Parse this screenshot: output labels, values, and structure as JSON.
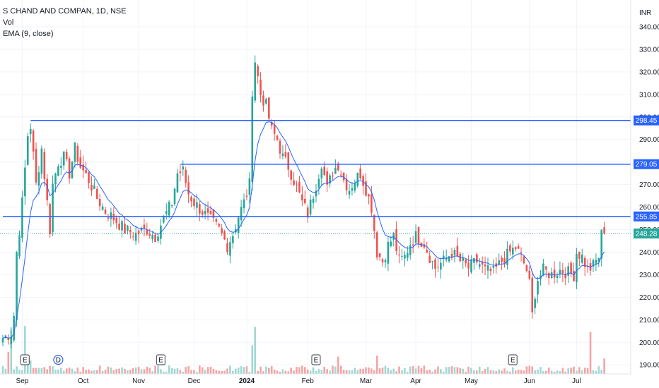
{
  "legend": {
    "symbol_line": "S CHAND AND COMPAN, 1D, NSE",
    "volume_label": "Vol",
    "ema_label": "EMA (9, close)"
  },
  "chart_data": {
    "type": "candlestick",
    "currency": "INR",
    "ylim": [
      186,
      345
    ],
    "y_ticks": [
      190,
      200,
      210,
      220,
      230,
      240,
      250,
      260,
      270,
      280,
      290,
      300,
      310,
      320,
      330,
      340
    ],
    "x_ticks": [
      "Sep",
      "Oct",
      "Nov",
      "Dec",
      "2024",
      "Feb",
      "Mar",
      "Apr",
      "May",
      "Jun",
      "Jul"
    ],
    "x_tick_index": [
      7,
      29,
      49,
      69,
      88,
      110,
      131,
      149,
      169,
      190,
      207
    ],
    "grid": true,
    "colors": {
      "up": "#26a69a",
      "down": "#ef5350",
      "ema": "#2962ff",
      "hline": "#2962ff",
      "vol_up": "#9fd8d2",
      "vol_down": "#f5a4a4"
    },
    "horizontal_lines": [
      {
        "value": 298.45,
        "label": "298.45",
        "start_index": 10
      },
      {
        "value": 279.05,
        "label": "279.05",
        "start_index": 64
      },
      {
        "value": 255.85,
        "label": "255.85",
        "start_index": 0
      }
    ],
    "last_price": {
      "value": 248.28,
      "label": "248.28"
    },
    "event_markers": [
      {
        "index": 8,
        "label": "E"
      },
      {
        "index": 20,
        "label": "D"
      },
      {
        "index": 57,
        "label": "E"
      },
      {
        "index": 113,
        "label": "E"
      },
      {
        "index": 184,
        "label": "E"
      }
    ],
    "anchors": [
      [
        0,
        202
      ],
      [
        3,
        204
      ],
      [
        4,
        212
      ],
      [
        5,
        240
      ],
      [
        6,
        250
      ],
      [
        7,
        262
      ],
      [
        9,
        292
      ],
      [
        10,
        296
      ],
      [
        12,
        270
      ],
      [
        14,
        286
      ],
      [
        16,
        262
      ],
      [
        17,
        250
      ],
      [
        18,
        270
      ],
      [
        20,
        280
      ],
      [
        22,
        282
      ],
      [
        24,
        275
      ],
      [
        26,
        286
      ],
      [
        28,
        278
      ],
      [
        31,
        272
      ],
      [
        34,
        264
      ],
      [
        37,
        258
      ],
      [
        40,
        255
      ],
      [
        44,
        250
      ],
      [
        48,
        248
      ],
      [
        52,
        250
      ],
      [
        55,
        247
      ],
      [
        58,
        255
      ],
      [
        61,
        262
      ],
      [
        63,
        275
      ],
      [
        65,
        276
      ],
      [
        67,
        266
      ],
      [
        69,
        262
      ],
      [
        72,
        258
      ],
      [
        75,
        254
      ],
      [
        78,
        250
      ],
      [
        81,
        243
      ],
      [
        83,
        248
      ],
      [
        85,
        256
      ],
      [
        87,
        262
      ],
      [
        89,
        270
      ],
      [
        90,
        312
      ],
      [
        91,
        325
      ],
      [
        93,
        310
      ],
      [
        95,
        305
      ],
      [
        97,
        294
      ],
      [
        99,
        290
      ],
      [
        101,
        282
      ],
      [
        103,
        278
      ],
      [
        105,
        272
      ],
      [
        108,
        262
      ],
      [
        110,
        257
      ],
      [
        113,
        270
      ],
      [
        115,
        280
      ],
      [
        117,
        268
      ],
      [
        119,
        276
      ],
      [
        121,
        279
      ],
      [
        123,
        272
      ],
      [
        125,
        268
      ],
      [
        127,
        272
      ],
      [
        129,
        275
      ],
      [
        131,
        268
      ],
      [
        133,
        260
      ],
      [
        135,
        240
      ],
      [
        137,
        236
      ],
      [
        139,
        243
      ],
      [
        141,
        247
      ],
      [
        143,
        236
      ],
      [
        145,
        238
      ],
      [
        147,
        244
      ],
      [
        149,
        247
      ],
      [
        152,
        244
      ],
      [
        154,
        238
      ],
      [
        156,
        233
      ],
      [
        159,
        236
      ],
      [
        162,
        240
      ],
      [
        165,
        236
      ],
      [
        168,
        233
      ],
      [
        171,
        236
      ],
      [
        174,
        232
      ],
      [
        177,
        231
      ],
      [
        180,
        236
      ],
      [
        183,
        240
      ],
      [
        185,
        242
      ],
      [
        187,
        238
      ],
      [
        189,
        232
      ],
      [
        190,
        226
      ],
      [
        191,
        212
      ],
      [
        192,
        222
      ],
      [
        193,
        228
      ],
      [
        195,
        232
      ],
      [
        198,
        230
      ],
      [
        201,
        232
      ],
      [
        204,
        231
      ],
      [
        206,
        230
      ],
      [
        207,
        240
      ],
      [
        209,
        238
      ],
      [
        211,
        232
      ],
      [
        213,
        234
      ],
      [
        215,
        238
      ],
      [
        216,
        248
      ]
    ]
  }
}
